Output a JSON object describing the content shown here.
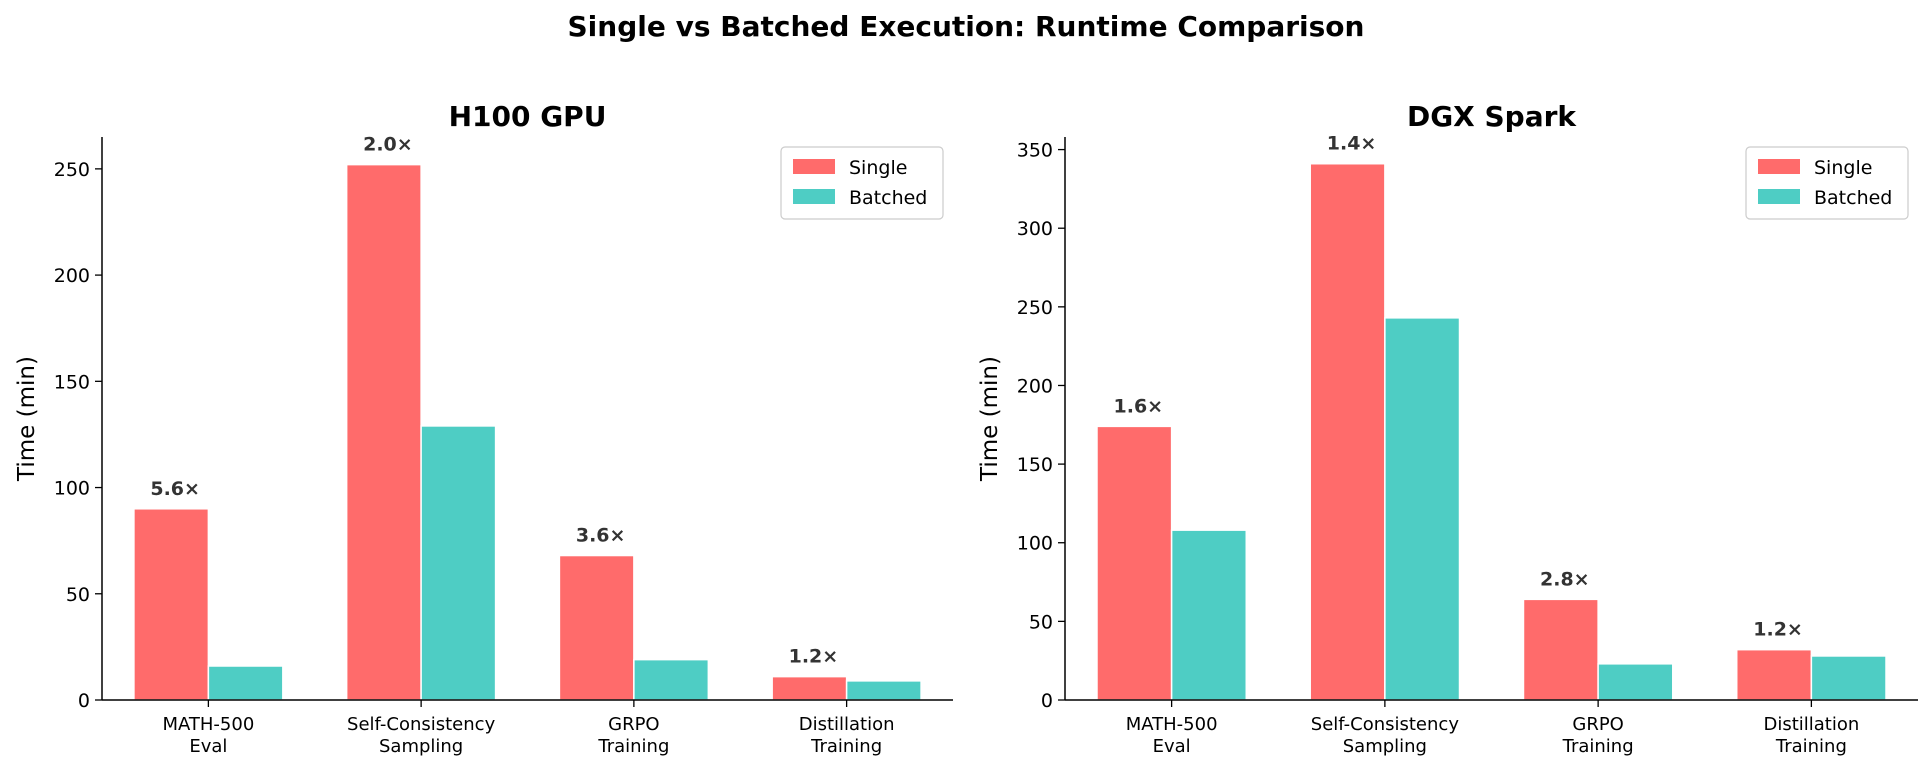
{
  "suptitle": "Single vs Batched Execution: Runtime Comparison",
  "colors": {
    "single": "#ff6b6b",
    "batched": "#4ecdc4",
    "axis": "#000000",
    "label": "#333333"
  },
  "chart_data": [
    {
      "type": "bar",
      "title": "H100 GPU",
      "ylabel": "Time (min)",
      "xlabel": "",
      "categories": [
        [
          "MATH-500",
          "Eval"
        ],
        [
          "Self-Consistency",
          "Sampling"
        ],
        [
          "GRPO",
          "Training"
        ],
        [
          "Distillation",
          "Training"
        ]
      ],
      "series": [
        {
          "name": "Single",
          "values": [
            90,
            252,
            68,
            11
          ]
        },
        {
          "name": "Batched",
          "values": [
            16,
            129,
            19,
            9
          ]
        }
      ],
      "annotations": [
        "5.6×",
        "2.0×",
        "3.6×",
        "1.2×"
      ],
      "ylim": [
        0,
        265
      ],
      "yticks": [
        0,
        50,
        100,
        150,
        200,
        250
      ],
      "legend": "top-right",
      "grid": false
    },
    {
      "type": "bar",
      "title": "DGX Spark",
      "ylabel": "Time (min)",
      "xlabel": "",
      "categories": [
        [
          "MATH-500",
          "Eval"
        ],
        [
          "Self-Consistency",
          "Sampling"
        ],
        [
          "GRPO",
          "Training"
        ],
        [
          "Distillation",
          "Training"
        ]
      ],
      "series": [
        {
          "name": "Single",
          "values": [
            174,
            341,
            64,
            32
          ]
        },
        {
          "name": "Batched",
          "values": [
            108,
            243,
            23,
            28
          ]
        }
      ],
      "annotations": [
        "1.6×",
        "1.4×",
        "2.8×",
        "1.2×"
      ],
      "ylim": [
        0,
        358
      ],
      "yticks": [
        0,
        50,
        100,
        150,
        200,
        250,
        300,
        350
      ],
      "legend": "top-right",
      "grid": false
    }
  ]
}
